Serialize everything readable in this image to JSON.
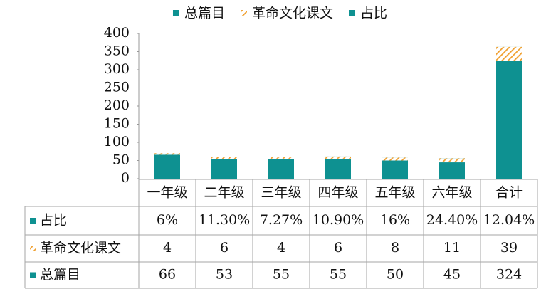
{
  "chart_data": {
    "type": "bar",
    "stacked": true,
    "categories": [
      "一年级",
      "二年级",
      "三年级",
      "四年级",
      "五年级",
      "六年级",
      "合计"
    ],
    "series": [
      {
        "name": "总篇目",
        "color": "#0e9191",
        "fill": "solid",
        "values": [
          66,
          53,
          55,
          55,
          50,
          45,
          324
        ]
      },
      {
        "name": "革命文化课文",
        "color": "#f0a030",
        "fill": "hatch",
        "values": [
          4,
          6,
          4,
          6,
          8,
          11,
          39
        ]
      },
      {
        "name": "占比",
        "color": "#0e9191",
        "fill": "solid",
        "values": [
          0.06,
          0.113,
          0.0727,
          0.109,
          0.16,
          0.244,
          0.1204
        ],
        "value_labels": [
          "6%",
          "11.30%",
          "7.27%",
          "10.90%",
          "16%",
          "24.40%",
          "12.04%"
        ]
      }
    ],
    "ylim": [
      0,
      400
    ],
    "yticks": [
      0,
      50,
      100,
      150,
      200,
      250,
      300,
      350,
      400
    ],
    "grid": false,
    "legend": "top",
    "data_table": true
  }
}
